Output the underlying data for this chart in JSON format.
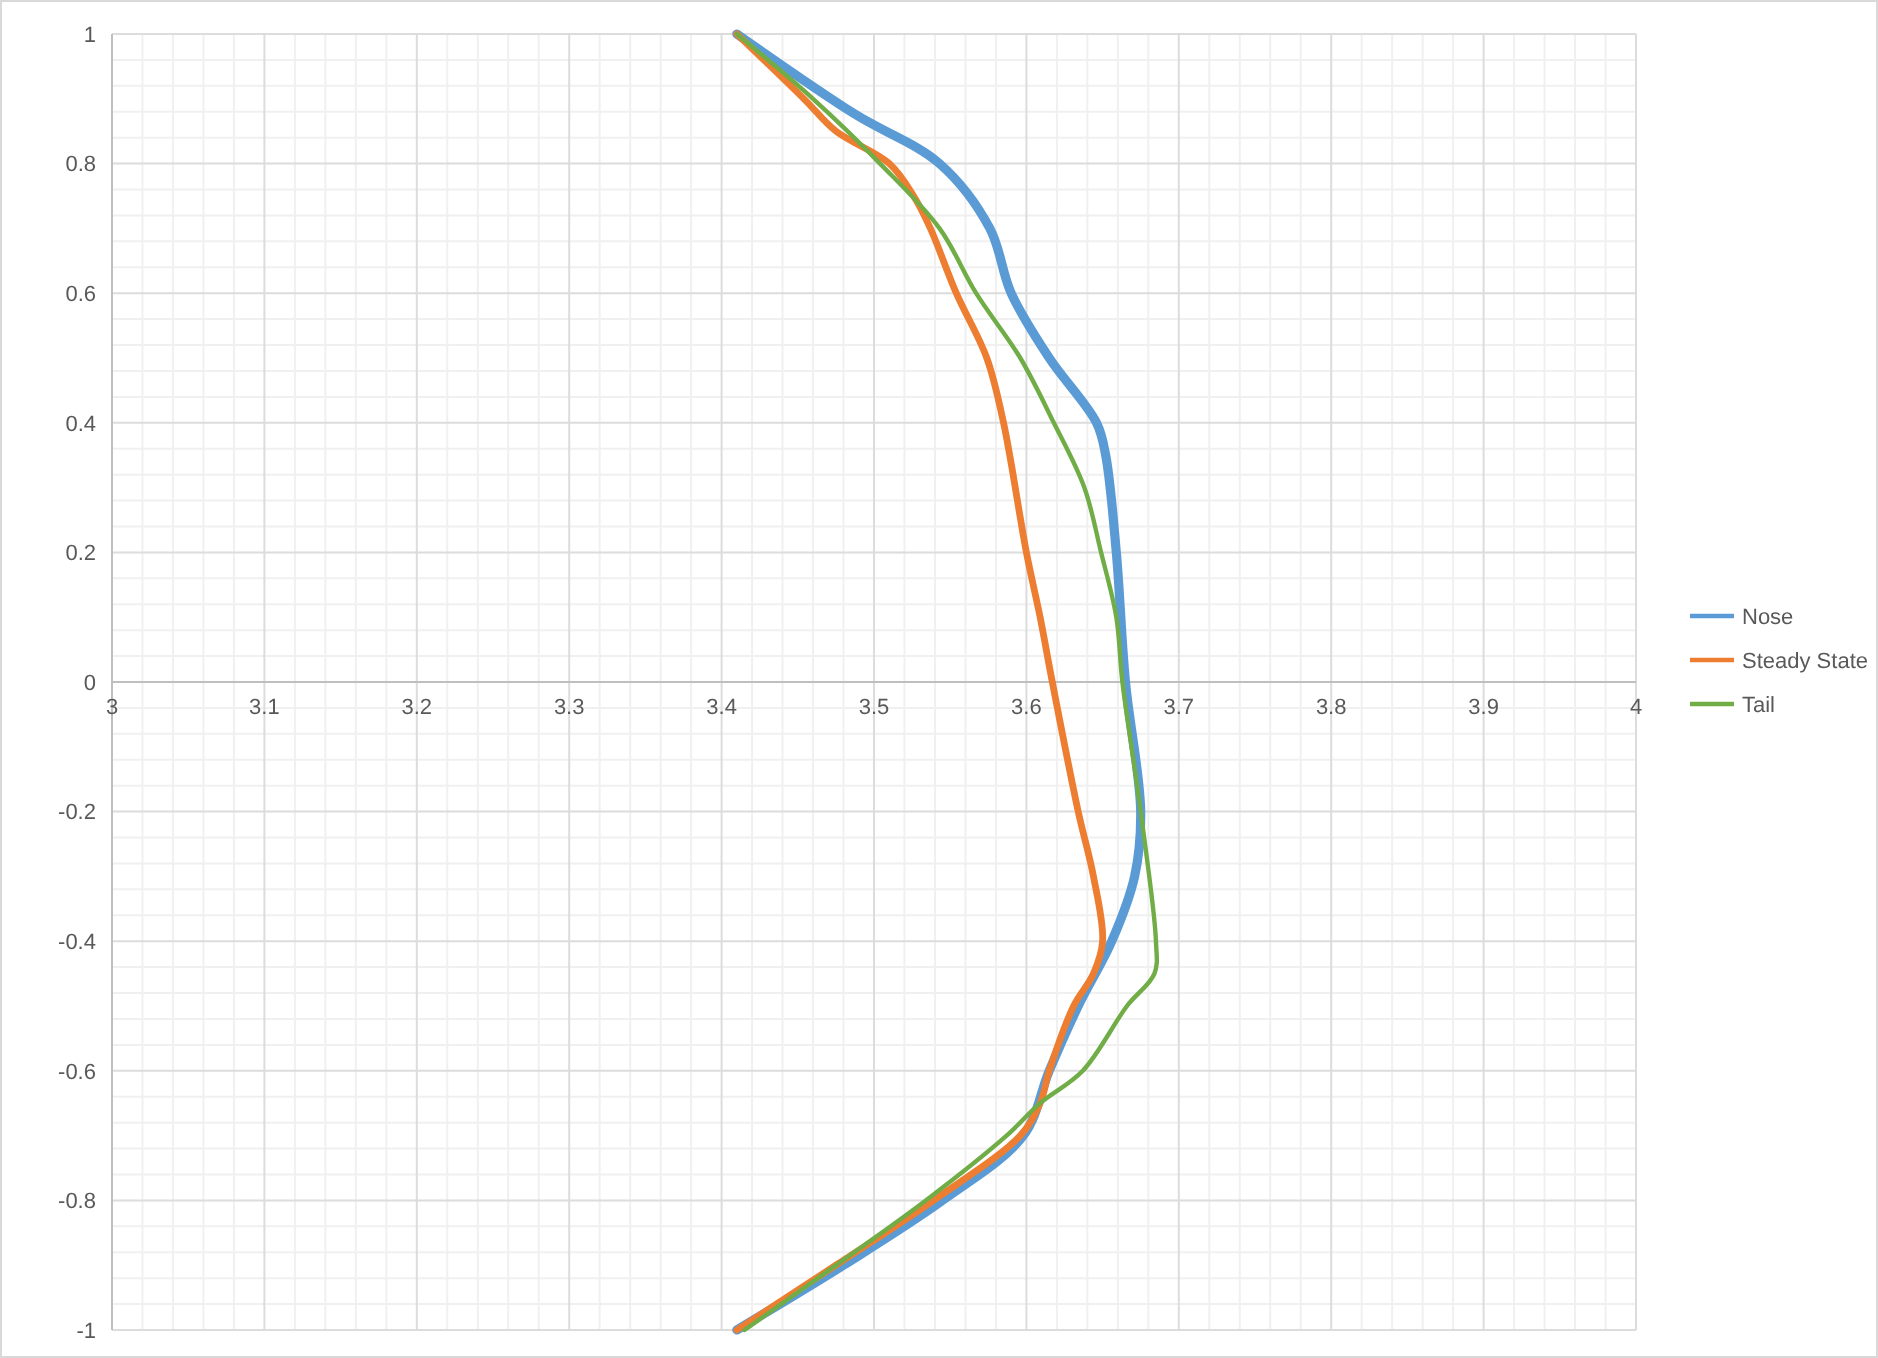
{
  "chart_data": {
    "type": "line",
    "xlim": [
      3,
      4
    ],
    "ylim": [
      -1,
      1
    ],
    "xticks": [
      3,
      3.1,
      3.2,
      3.3,
      3.4,
      3.5,
      3.6,
      3.7,
      3.8,
      3.9,
      4
    ],
    "yticks": [
      -1,
      -0.8,
      -0.6,
      -0.4,
      -0.2,
      0,
      0.2,
      0.4,
      0.6,
      0.8,
      1
    ],
    "grid": true,
    "legend": "right",
    "marker": "none",
    "line_style": "solid",
    "series": [
      {
        "name": "Nose",
        "color": "#5b9bd5",
        "x": [
          3.41,
          3.487,
          3.543,
          3.576,
          3.59,
          3.615,
          3.646,
          3.652,
          3.659,
          3.665,
          3.675,
          3.671,
          3.656,
          3.634,
          3.615,
          3.598,
          3.545,
          3.48,
          3.41
        ],
        "values": [
          1,
          0.877,
          0.8,
          0.7,
          0.6,
          0.5,
          0.4,
          0.35,
          0.2,
          0,
          -0.2,
          -0.3,
          -0.4,
          -0.5,
          -0.6,
          -0.7,
          -0.8,
          -0.9,
          -1
        ]
      },
      {
        "name": "Steady State",
        "color": "#ed7d31",
        "x": [
          3.41,
          3.454,
          3.475,
          3.51,
          3.526,
          3.537,
          3.554,
          3.574,
          3.585,
          3.6,
          3.609,
          3.617,
          3.634,
          3.644,
          3.65,
          3.644,
          3.631,
          3.615,
          3.609,
          3.596,
          3.539,
          3.475,
          3.41
        ],
        "values": [
          1,
          0.9,
          0.85,
          0.8,
          0.75,
          0.7,
          0.6,
          0.5,
          0.4,
          0.2,
          0.1,
          0,
          -0.2,
          -0.3,
          -0.4,
          -0.45,
          -0.5,
          -0.6,
          -0.65,
          -0.7,
          -0.8,
          -0.9,
          -1
        ]
      },
      {
        "name": "Tail",
        "color": "#70ad47",
        "x": [
          3.41,
          3.46,
          3.504,
          3.543,
          3.567,
          3.596,
          3.618,
          3.638,
          3.649,
          3.659,
          3.663,
          3.675,
          3.685,
          3.684,
          3.666,
          3.637,
          3.609,
          3.587,
          3.534,
          3.475,
          3.415
        ],
        "values": [
          1,
          0.9,
          0.8,
          0.7,
          0.6,
          0.5,
          0.4,
          0.3,
          0.2,
          0.1,
          0,
          -0.2,
          -0.4,
          -0.45,
          -0.5,
          -0.6,
          -0.65,
          -0.7,
          -0.8,
          -0.9,
          -1
        ]
      }
    ]
  }
}
